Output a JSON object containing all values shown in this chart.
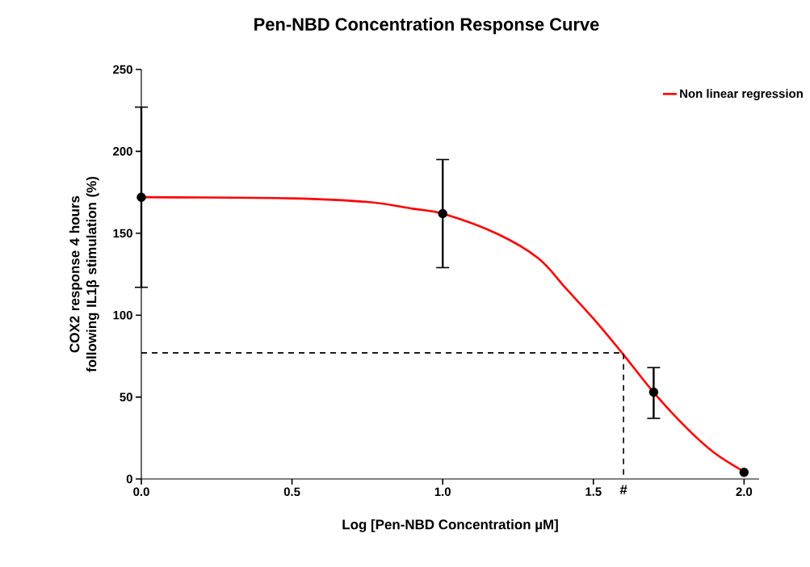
{
  "chart_data": {
    "type": "line",
    "title": "Pen-NBD Concentration Response Curve",
    "xlabel": "Log [Pen-NBD Concentration µM]",
    "ylabel": "COX2 response 4 hours following IL1β stimulation (%)",
    "xlim": [
      0,
      2.05
    ],
    "ylim": [
      0,
      250
    ],
    "xticks": [
      {
        "value": 0,
        "label": "0.0"
      },
      0.5,
      {
        "value": 1,
        "label": "1.0"
      },
      1.5,
      {
        "value": 2,
        "label": "2.0"
      }
    ],
    "yticks": [
      0,
      50,
      100,
      150,
      200,
      250
    ],
    "legend": "top right",
    "grid": false,
    "annotations": [
      {
        "text": "#",
        "x": 1.6,
        "y": 0
      }
    ],
    "series": [
      {
        "name": "Non linear regression",
        "color": "#ff0000",
        "marker": "none",
        "line_style": "solid",
        "x": [
          0,
          0.5,
          0.75,
          0.9,
          1.005,
          1.184,
          1.318,
          1.408,
          1.497,
          1.595,
          1.702,
          1.81,
          1.899,
          1.997
        ],
        "values": [
          172,
          171.3,
          169.1,
          165,
          161.7,
          149.4,
          134.6,
          116.5,
          98.5,
          77,
          52.4,
          31,
          16.3,
          4.8
        ]
      },
      {
        "type": "scatter",
        "color": "#000000",
        "marker": "circle",
        "x": [
          0,
          1,
          1.7,
          2
        ],
        "values": [
          172,
          162,
          53,
          4
        ],
        "errors": [
          [
            117,
            227
          ],
          [
            129,
            195
          ],
          [
            37,
            68
          ],
          null
        ]
      },
      {
        "type": "line",
        "color": "#000000",
        "marker": "none",
        "line_style": "dashed",
        "x": [
          0,
          1.6,
          1.6
        ],
        "values": [
          77,
          77,
          0
        ]
      }
    ]
  }
}
